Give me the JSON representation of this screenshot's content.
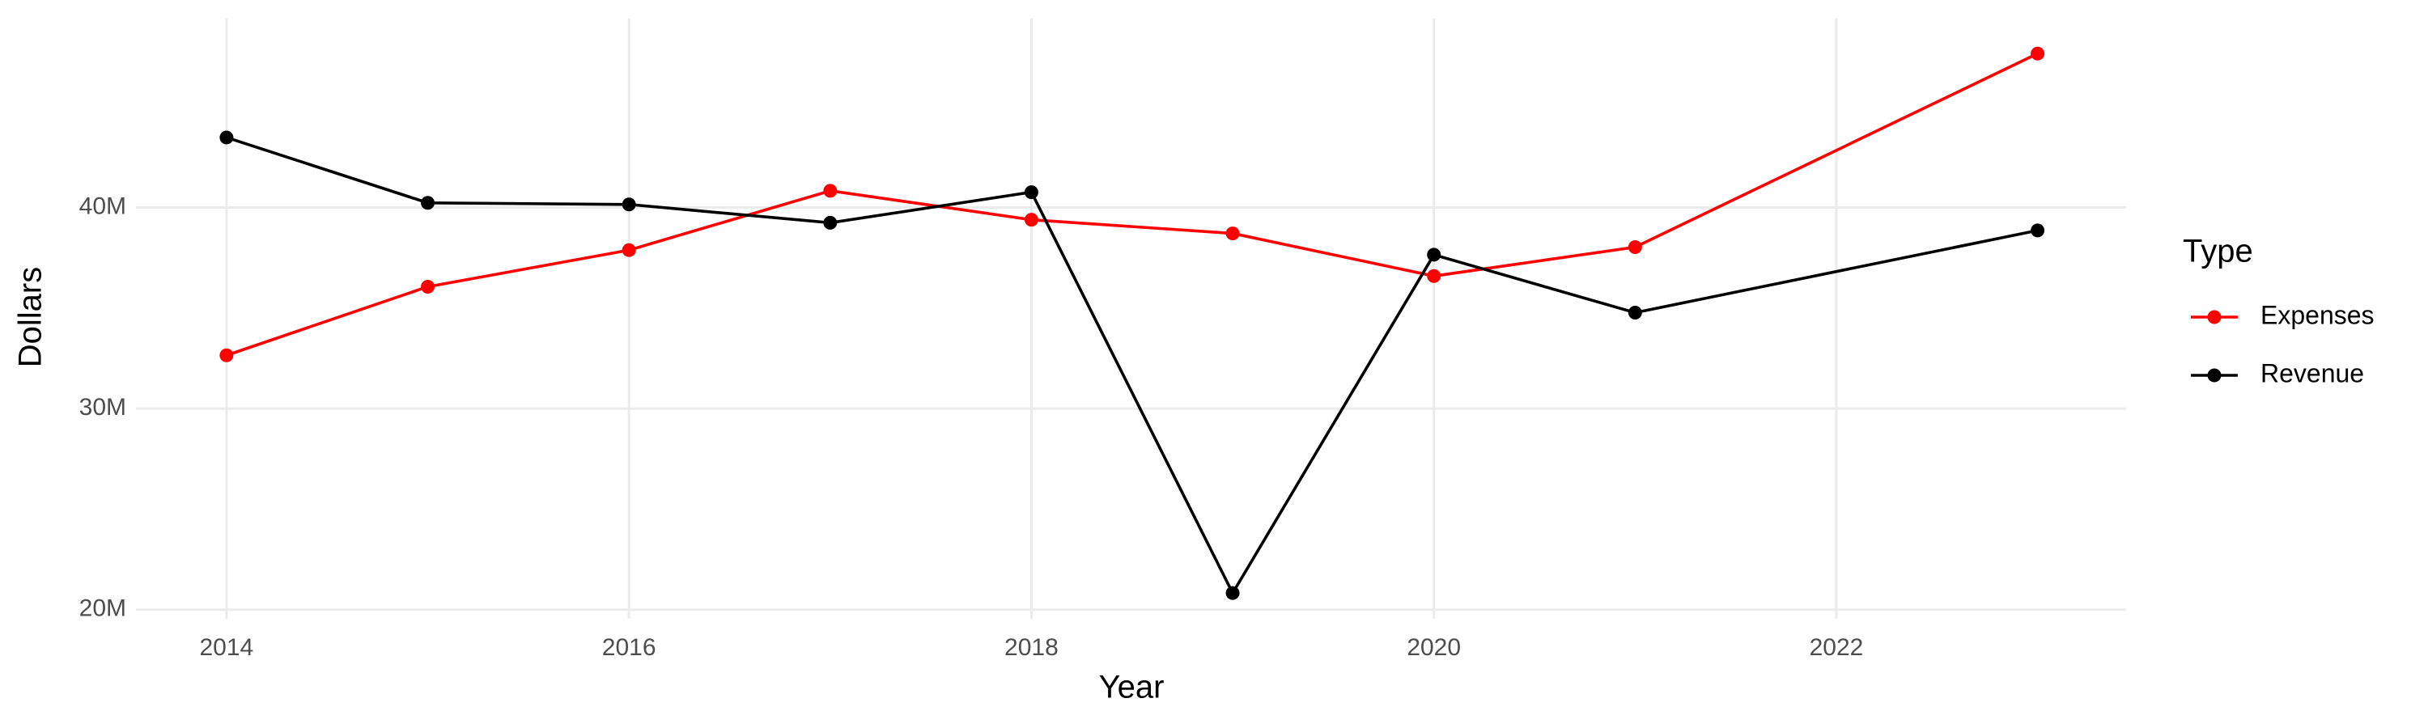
{
  "chart_data": {
    "type": "line",
    "x_label": "Year",
    "y_label": "Dollars",
    "legend_title": "Type",
    "x": [
      2014,
      2015,
      2016,
      2017,
      2018,
      2019,
      2020,
      2021,
      2023
    ],
    "series": [
      {
        "name": "Expenses",
        "color": "#ff0000",
        "values": [
          32650000,
          36060000,
          37880000,
          40830000,
          39390000,
          38710000,
          36590000,
          38030000,
          47650000
        ]
      },
      {
        "name": "Revenue",
        "color": "#000000",
        "values": [
          43480000,
          40230000,
          40150000,
          39240000,
          40760000,
          20830000,
          37650000,
          34770000,
          38860000
        ]
      }
    ],
    "xlim": [
      2013.55,
      2023.44
    ],
    "xticks": [
      2014,
      2016,
      2018,
      2020,
      2022
    ],
    "ylim": [
      19550000,
      49390000
    ],
    "yticks": [
      {
        "value": 20000000,
        "label": "20M"
      },
      {
        "value": 30000000,
        "label": "30M"
      },
      {
        "value": 40000000,
        "label": "40M"
      }
    ],
    "grid": true,
    "legend": "right"
  }
}
